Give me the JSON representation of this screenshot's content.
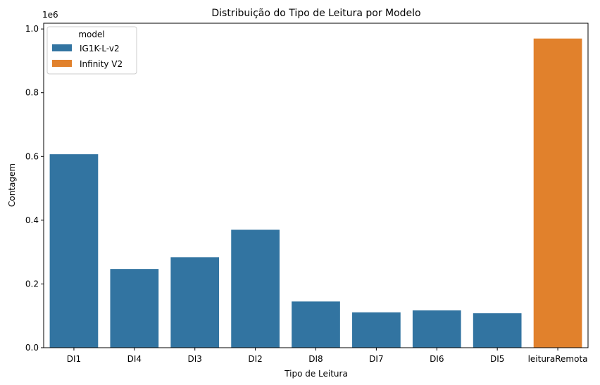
{
  "chart_data": {
    "type": "bar",
    "title": "Distribuição do Tipo de Leitura por Modelo",
    "xlabel": "Tipo de Leitura",
    "ylabel": "Contagem",
    "y_offset_label": "1e6",
    "y_tick_labels": [
      "0.0",
      "0.2",
      "0.4",
      "0.6",
      "0.8",
      "1.0"
    ],
    "y_ticks": [
      0,
      200000,
      400000,
      600000,
      800000,
      1000000
    ],
    "ylim": [
      0,
      1018000
    ],
    "categories": [
      "DI1",
      "DI4",
      "DI3",
      "DI2",
      "DI8",
      "DI7",
      "DI6",
      "DI5",
      "leituraRemota"
    ],
    "legend_title": "model",
    "legend_position": "top-left",
    "grid": false,
    "series": [
      {
        "name": "IG1K-L-v2",
        "color": "#3274a1",
        "values": [
          607000,
          247000,
          284000,
          370000,
          145000,
          111000,
          117000,
          108000,
          null
        ]
      },
      {
        "name": "Infinity V2",
        "color": "#e1812c",
        "values": [
          null,
          null,
          null,
          null,
          null,
          null,
          null,
          null,
          970000
        ]
      }
    ]
  }
}
